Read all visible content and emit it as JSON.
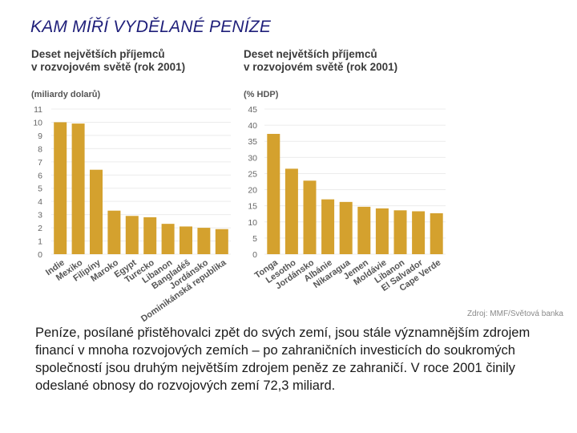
{
  "slide": {
    "title": "KAM MÍŘÍ VYDĚLANÉ PENÍZE",
    "caption": "Peníze, posílané přistěhovalci zpět do svých zemí, jsou stále významnějším zdrojem financí v mnoha rozvojových zemích – po zahraničních investicích do soukromých společností jsou druhým největším zdrojem peněz ze zahraničí. V roce 2001 činily odeslané obnosy do rozvojových zemí 72,3 miliard.",
    "source": "Zdroj: MMF/Světová banka"
  },
  "colors": {
    "bar": "#d4a12e",
    "grid": "#ececec",
    "axis": "#9a9a9a"
  },
  "chart_data": [
    {
      "type": "bar",
      "title_lines": [
        "Deset největších příjemců",
        "v rozvojovém světě (rok 2001)"
      ],
      "ylabel": "(miliardy dolarů)",
      "ylim": [
        0,
        11
      ],
      "yticks": [
        0,
        1,
        2,
        3,
        4,
        5,
        6,
        7,
        8,
        9,
        10,
        11
      ],
      "categories": [
        "Indie",
        "Mexiko",
        "Filipíny",
        "Maroko",
        "Egypt",
        "Turecko",
        "Libanon",
        "Bangladéš",
        "Jordánsko",
        "Dominikánská republika"
      ],
      "values": [
        10.0,
        9.9,
        6.4,
        3.3,
        2.9,
        2.8,
        2.3,
        2.1,
        2.0,
        1.9
      ]
    },
    {
      "type": "bar",
      "title_lines": [
        "Deset největších příjemců",
        "v rozvojovém světě (rok 2001)"
      ],
      "ylabel": "(% HDP)",
      "ylim": [
        0,
        45
      ],
      "yticks": [
        0,
        5,
        10,
        15,
        20,
        25,
        30,
        35,
        40,
        45
      ],
      "categories": [
        "Tonga",
        "Lesotho",
        "Jordánsko",
        "Albánie",
        "Nikaragua",
        "Jemen",
        "Moldávie",
        "Libanon",
        "El Salvador",
        "Cape Verde"
      ],
      "values": [
        37.3,
        26.5,
        22.8,
        17.0,
        16.2,
        14.7,
        14.2,
        13.6,
        13.3,
        12.7
      ]
    }
  ]
}
